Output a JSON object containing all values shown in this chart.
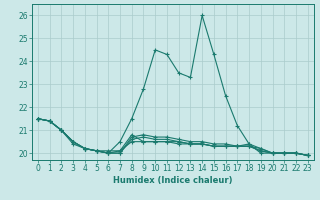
{
  "xlabel": "Humidex (Indice chaleur)",
  "xlim": [
    -0.5,
    23.5
  ],
  "ylim": [
    19.7,
    26.5
  ],
  "yticks": [
    20,
    21,
    22,
    23,
    24,
    25,
    26
  ],
  "xticks": [
    0,
    1,
    2,
    3,
    4,
    5,
    6,
    7,
    8,
    9,
    10,
    11,
    12,
    13,
    14,
    15,
    16,
    17,
    18,
    19,
    20,
    21,
    22,
    23
  ],
  "bg_color": "#cce8e8",
  "grid_color": "#aacccc",
  "line_color": "#1a7a6e",
  "series": [
    [
      21.5,
      21.4,
      21.0,
      20.5,
      20.2,
      20.1,
      20.0,
      20.5,
      21.5,
      22.8,
      24.5,
      24.3,
      23.5,
      23.3,
      26.0,
      24.3,
      22.5,
      21.2,
      20.4,
      20.0,
      20.0,
      20.0,
      20.0,
      19.9
    ],
    [
      21.5,
      21.4,
      21.0,
      20.5,
      20.2,
      20.1,
      20.0,
      20.0,
      20.7,
      20.8,
      20.7,
      20.7,
      20.6,
      20.5,
      20.5,
      20.4,
      20.4,
      20.3,
      20.3,
      20.1,
      20.0,
      20.0,
      20.0,
      19.9
    ],
    [
      21.5,
      21.4,
      21.0,
      20.5,
      20.2,
      20.1,
      20.0,
      20.0,
      20.6,
      20.7,
      20.6,
      20.6,
      20.5,
      20.4,
      20.4,
      20.3,
      20.3,
      20.3,
      20.3,
      20.2,
      20.0,
      20.0,
      20.0,
      19.9
    ],
    [
      21.5,
      21.4,
      21.0,
      20.4,
      20.2,
      20.1,
      20.1,
      20.1,
      20.8,
      20.5,
      20.5,
      20.5,
      20.5,
      20.4,
      20.4,
      20.3,
      20.3,
      20.3,
      20.3,
      20.1,
      20.0,
      20.0,
      20.0,
      19.9
    ],
    [
      21.5,
      21.4,
      21.0,
      20.5,
      20.2,
      20.1,
      20.0,
      20.1,
      20.5,
      20.5,
      20.5,
      20.5,
      20.4,
      20.4,
      20.4,
      20.3,
      20.3,
      20.3,
      20.4,
      20.2,
      20.0,
      20.0,
      20.0,
      19.9
    ]
  ],
  "marker": "+",
  "markersize": 3,
  "linewidth": 0.8
}
